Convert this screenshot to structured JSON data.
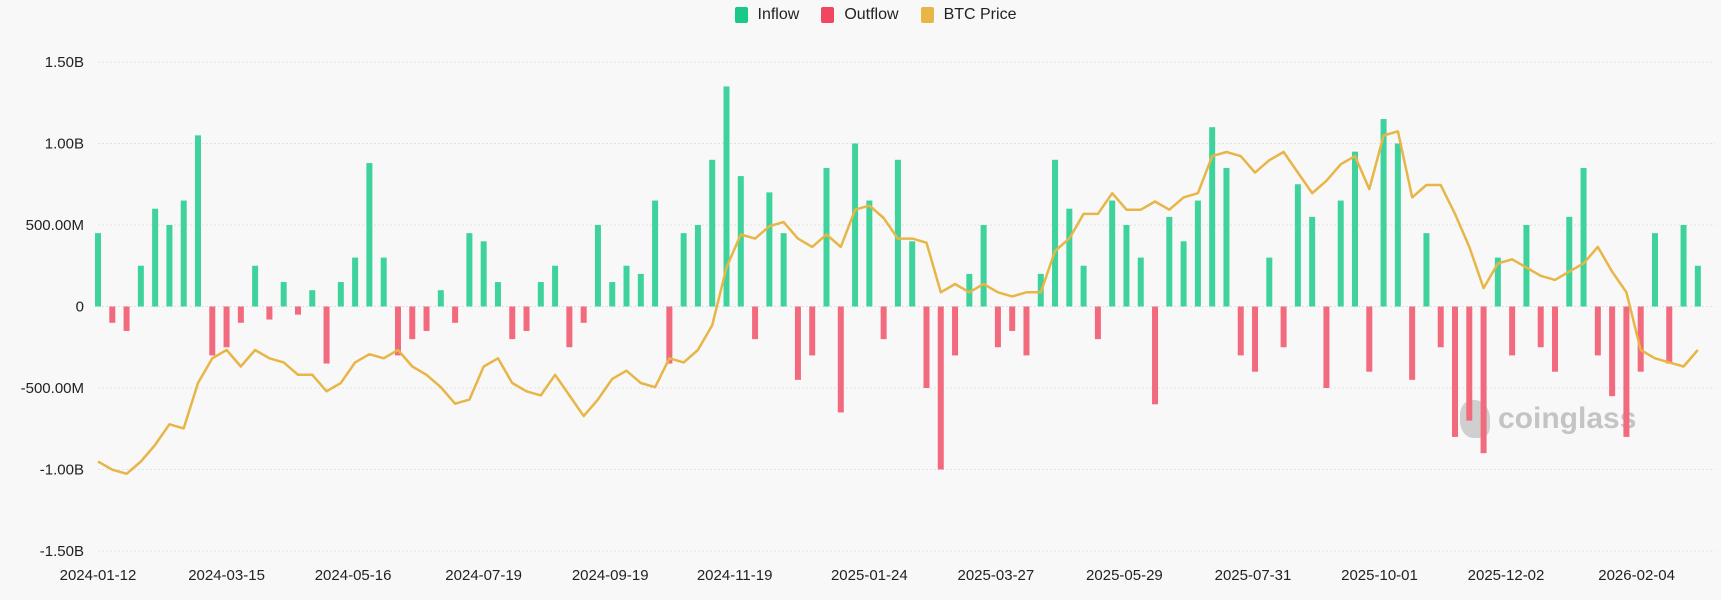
{
  "legend": [
    {
      "label": "Inflow",
      "color": "#19c98a"
    },
    {
      "label": "Outflow",
      "color": "#f0465f"
    },
    {
      "label": "BTC Price",
      "color": "#e8b547"
    }
  ],
  "watermark": "coinglass",
  "chart_data": {
    "type": "bar",
    "title": "",
    "xlabel": "",
    "ylabel": "",
    "ylim": [
      -1500000000,
      1500000000
    ],
    "y_ticks": [
      "1.50B",
      "1.00B",
      "500.00M",
      "0",
      "-500.00M",
      "-1.00B",
      "-1.50B"
    ],
    "y_tick_values": [
      1500000000,
      1000000000,
      500000000,
      0,
      -500000000,
      -1000000000,
      -1500000000
    ],
    "x_ticks": [
      "2024-01-12",
      "2024-03-15",
      "2024-05-16",
      "2024-07-19",
      "2024-09-19",
      "2024-11-19",
      "2025-01-24",
      "2025-03-27",
      "2025-05-29",
      "2025-07-31",
      "2025-10-01",
      "2025-12-02",
      "2026-02-04"
    ],
    "grid": true,
    "legend_position": "top-center",
    "flow_unit": "USD millions (net; positive = Inflow, negative = Outflow)",
    "price_unit": "USD thousands",
    "x": [
      "2024-01-12",
      "2024-01-19",
      "2024-01-26",
      "2024-02-02",
      "2024-02-09",
      "2024-02-16",
      "2024-02-23",
      "2024-03-01",
      "2024-03-08",
      "2024-03-15",
      "2024-03-22",
      "2024-03-29",
      "2024-04-05",
      "2024-04-12",
      "2024-04-19",
      "2024-04-26",
      "2024-05-03",
      "2024-05-10",
      "2024-05-17",
      "2024-05-24",
      "2024-05-31",
      "2024-06-07",
      "2024-06-14",
      "2024-06-21",
      "2024-06-28",
      "2024-07-05",
      "2024-07-12",
      "2024-07-19",
      "2024-07-26",
      "2024-08-02",
      "2024-08-09",
      "2024-08-16",
      "2024-08-23",
      "2024-08-30",
      "2024-09-06",
      "2024-09-13",
      "2024-09-20",
      "2024-09-27",
      "2024-10-04",
      "2024-10-11",
      "2024-10-18",
      "2024-10-25",
      "2024-11-01",
      "2024-11-08",
      "2024-11-15",
      "2024-11-22",
      "2024-11-29",
      "2024-12-06",
      "2024-12-13",
      "2024-12-20",
      "2024-12-27",
      "2025-01-03",
      "2025-01-10",
      "2025-01-17",
      "2025-01-24",
      "2025-01-31",
      "2025-02-07",
      "2025-02-14",
      "2025-02-21",
      "2025-02-28",
      "2025-03-07",
      "2025-03-14",
      "2025-03-21",
      "2025-03-28",
      "2025-04-04",
      "2025-04-11",
      "2025-04-18",
      "2025-04-25",
      "2025-05-02",
      "2025-05-09",
      "2025-05-16",
      "2025-05-23",
      "2025-05-30",
      "2025-06-06",
      "2025-06-13",
      "2025-06-20",
      "2025-06-27",
      "2025-07-04",
      "2025-07-11",
      "2025-07-18",
      "2025-07-25",
      "2025-08-01",
      "2025-08-08",
      "2025-08-15",
      "2025-08-22",
      "2025-08-29",
      "2025-09-05",
      "2025-09-12",
      "2025-09-19",
      "2025-09-26",
      "2025-10-03",
      "2025-10-10",
      "2025-10-17",
      "2025-10-24",
      "2025-10-31",
      "2025-11-07",
      "2025-11-14",
      "2025-11-21",
      "2025-11-28",
      "2025-12-05",
      "2025-12-12",
      "2025-12-19",
      "2025-12-26",
      "2026-01-02",
      "2026-01-09",
      "2026-01-16",
      "2026-01-23",
      "2026-01-30",
      "2026-02-06",
      "2026-02-13",
      "2026-02-20",
      "2026-02-27",
      "2026-03-06"
    ],
    "series": [
      {
        "name": "Inflow / Outflow",
        "values": [
          450,
          -100,
          -150,
          250,
          600,
          500,
          650,
          1050,
          -300,
          -250,
          -100,
          250,
          -80,
          150,
          -50,
          100,
          -350,
          150,
          300,
          880,
          300,
          -300,
          -200,
          -150,
          100,
          -100,
          450,
          400,
          150,
          -200,
          -150,
          150,
          250,
          -250,
          -100,
          500,
          150,
          250,
          200,
          650,
          -350,
          450,
          500,
          900,
          1350,
          800,
          -200,
          700,
          450,
          -450,
          -300,
          850,
          -650,
          1000,
          650,
          -200,
          900,
          400,
          -500,
          -1000,
          -300,
          200,
          500,
          -250,
          -150,
          -300,
          200,
          900,
          600,
          250,
          -200,
          650,
          500,
          300,
          -600,
          550,
          400,
          650,
          1100,
          850,
          -300,
          -400,
          300,
          -250,
          750,
          550,
          -500,
          650,
          950,
          -400,
          1150,
          1000,
          -450,
          450,
          -250,
          -800,
          -700,
          -900,
          300,
          -300,
          500,
          -250,
          -400,
          550,
          850,
          -300,
          -550,
          -800,
          -400,
          450,
          -350,
          500,
          250
        ]
      },
      {
        "name": "BTC Price",
        "values": [
          43,
          41,
          40,
          43,
          47,
          52,
          51,
          62,
          68,
          70,
          66,
          70,
          68,
          67,
          64,
          64,
          60,
          62,
          67,
          69,
          68,
          70,
          66,
          64,
          61,
          57,
          58,
          66,
          68,
          62,
          60,
          59,
          64,
          59,
          54,
          58,
          63,
          65,
          62,
          61,
          68,
          67,
          70,
          76,
          90,
          98,
          97,
          100,
          101,
          97,
          95,
          98,
          95,
          104,
          105,
          102,
          97,
          97,
          96,
          84,
          86,
          84,
          86,
          84,
          83,
          84,
          84,
          94,
          97,
          103,
          103,
          108,
          104,
          104,
          106,
          104,
          107,
          108,
          117,
          118,
          117,
          113,
          116,
          118,
          113,
          108,
          111,
          115,
          117,
          109,
          122,
          123,
          107,
          110,
          110,
          103,
          95,
          85,
          91,
          92,
          90,
          88,
          87,
          89,
          91,
          95,
          89,
          84,
          70,
          68,
          67,
          66,
          70
        ]
      }
    ]
  }
}
